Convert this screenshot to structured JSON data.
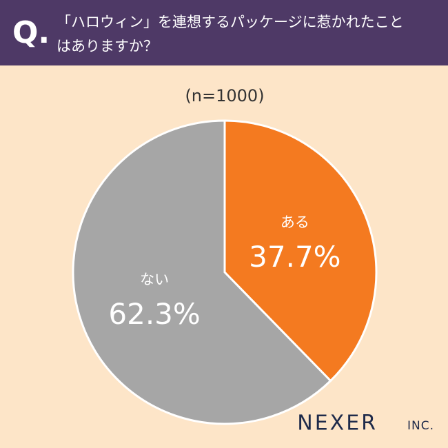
{
  "chart_data": {
    "type": "pie",
    "q_label": "Q.",
    "title": [
      "「ハロウィン」を連想するパッケージに惹かれたこと",
      "はありますか？"
    ],
    "subtitle": "(n=1000)",
    "categories": [
      "ある",
      "ない"
    ],
    "values": [
      37.7,
      62.3
    ],
    "value_labels": [
      "37.7%",
      "62.3%"
    ],
    "colors": [
      "#f47a20",
      "#a6a6a6"
    ],
    "logo": "NEXER",
    "logo_suffix": "INC."
  }
}
